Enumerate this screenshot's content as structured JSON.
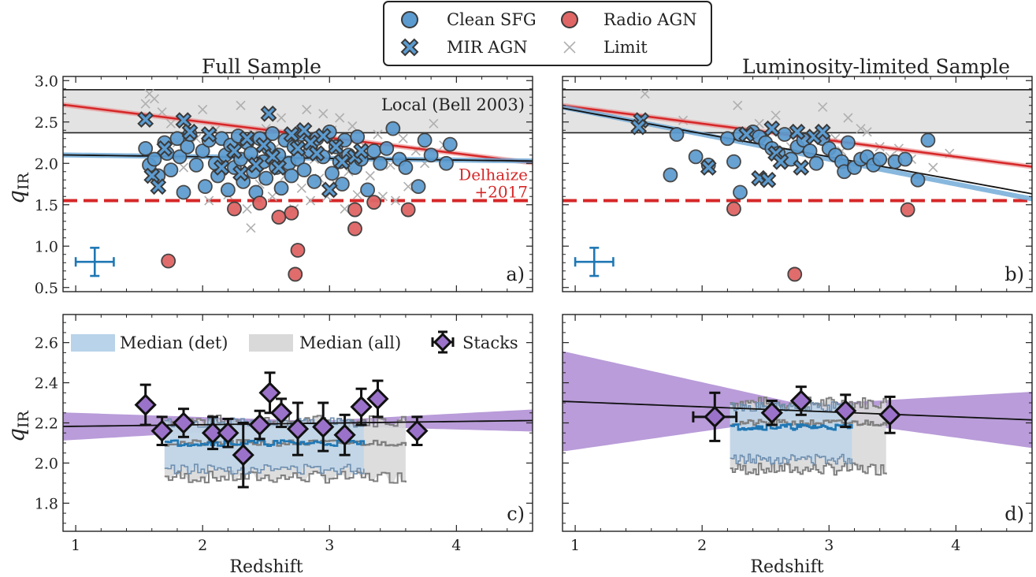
{
  "legend": {
    "items": [
      {
        "label": "Clean SFG",
        "marker": "circle",
        "color": "#5b9bd0"
      },
      {
        "label": "Radio AGN",
        "marker": "circle",
        "color": "#e06565"
      },
      {
        "label": "MIR AGN",
        "marker": "x-fat",
        "color": "#5b9bd0"
      },
      {
        "label": "Limit",
        "marker": "x-thin",
        "color": "#b0b0b0"
      }
    ]
  },
  "colors": {
    "sfg": "#5b9bd0",
    "agn": "#e06565",
    "limit": "#b0b0b0",
    "bell_band": "#e3e3e3",
    "red_line": "#d62728",
    "blue_line": "#1f77b4",
    "purple": "#9b72c9",
    "band_det": "#b8d3ea",
    "band_all": "#d9d9d9"
  },
  "chart_data": [
    {
      "id": "a",
      "type": "scatter",
      "title": "Full Sample",
      "xlabel": "",
      "ylabel": "q_IR",
      "xlim": [
        0.9,
        4.6
      ],
      "ylim": [
        0.45,
        3.05
      ],
      "yticks": [
        "0.5",
        "1.0",
        "1.5",
        "2.0",
        "2.5",
        "3.0"
      ],
      "panel_label": "a)",
      "bell_band": [
        2.37,
        2.89
      ],
      "bell_label": "Local (Bell 2003)",
      "delhaize_level": 1.55,
      "delhaize_label": [
        "Delhaize",
        "+2017"
      ],
      "fit_red": {
        "a": 2.88,
        "b": -0.19
      },
      "fit_blue": {
        "a": 2.12,
        "b": -0.02
      },
      "errorbar": {
        "x": 1.15,
        "y": 0.81,
        "xerr": 0.15,
        "yerr": 0.17
      },
      "sfg": [
        [
          1.55,
          2.18
        ],
        [
          1.58,
          1.98
        ],
        [
          1.62,
          2.05
        ],
        [
          1.65,
          1.85
        ],
        [
          1.7,
          2.25
        ],
        [
          1.72,
          2.12
        ],
        [
          1.75,
          1.92
        ],
        [
          1.8,
          2.3
        ],
        [
          1.82,
          2.08
        ],
        [
          1.85,
          1.65
        ],
        [
          1.88,
          2.2
        ],
        [
          1.9,
          2.35
        ],
        [
          1.95,
          1.98
        ],
        [
          2.0,
          2.15
        ],
        [
          2.02,
          1.72
        ],
        [
          2.05,
          2.28
        ],
        [
          2.1,
          2.0
        ],
        [
          2.12,
          1.85
        ],
        [
          2.15,
          2.3
        ],
        [
          2.18,
          2.1
        ],
        [
          2.2,
          1.68
        ],
        [
          2.22,
          2.22
        ],
        [
          2.25,
          1.95
        ],
        [
          2.28,
          2.33
        ],
        [
          2.3,
          2.05
        ],
        [
          2.32,
          1.78
        ],
        [
          2.35,
          2.25
        ],
        [
          2.38,
          2.12
        ],
        [
          2.4,
          1.9
        ],
        [
          2.42,
          1.65
        ],
        [
          2.45,
          2.3
        ],
        [
          2.48,
          2.02
        ],
        [
          2.5,
          1.82
        ],
        [
          2.52,
          2.18
        ],
        [
          2.55,
          2.36
        ],
        [
          2.58,
          1.95
        ],
        [
          2.6,
          2.1
        ],
        [
          2.62,
          1.7
        ],
        [
          2.65,
          2.28
        ],
        [
          2.68,
          2.0
        ],
        [
          2.7,
          1.85
        ],
        [
          2.72,
          2.2
        ],
        [
          2.75,
          2.05
        ],
        [
          2.78,
          2.35
        ],
        [
          2.8,
          1.92
        ],
        [
          2.85,
          2.15
        ],
        [
          2.88,
          1.78
        ],
        [
          2.9,
          2.3
        ],
        [
          2.95,
          2.08
        ],
        [
          3.0,
          2.38
        ],
        [
          3.02,
          1.88
        ],
        [
          3.05,
          2.2
        ],
        [
          3.08,
          2.02
        ],
        [
          3.1,
          1.75
        ],
        [
          3.12,
          2.28
        ],
        [
          3.15,
          2.1
        ],
        [
          3.2,
          1.95
        ],
        [
          3.22,
          2.32
        ],
        [
          3.25,
          2.05
        ],
        [
          3.3,
          1.68
        ],
        [
          3.35,
          2.15
        ],
        [
          3.4,
          2.0
        ],
        [
          3.45,
          2.18
        ],
        [
          3.5,
          2.42
        ],
        [
          3.55,
          2.05
        ],
        [
          3.6,
          1.95
        ],
        [
          3.7,
          1.72
        ],
        [
          3.75,
          2.28
        ],
        [
          3.8,
          2.1
        ],
        [
          3.92,
          2.0
        ],
        [
          3.95,
          2.23
        ]
      ],
      "mir": [
        [
          1.55,
          2.53
        ],
        [
          1.6,
          1.85
        ],
        [
          1.65,
          1.72
        ],
        [
          1.7,
          2.18
        ],
        [
          1.85,
          2.52
        ],
        [
          1.9,
          2.38
        ],
        [
          2.05,
          2.35
        ],
        [
          2.15,
          1.95
        ],
        [
          2.25,
          2.15
        ],
        [
          2.3,
          1.88
        ],
        [
          2.35,
          2.3
        ],
        [
          2.42,
          1.98
        ],
        [
          2.48,
          2.22
        ],
        [
          2.52,
          2.6
        ],
        [
          2.55,
          2.08
        ],
        [
          2.6,
          1.95
        ],
        [
          2.7,
          2.35
        ],
        [
          2.75,
          2.18
        ],
        [
          2.8,
          2.4
        ],
        [
          2.85,
          2.25
        ],
        [
          2.9,
          2.12
        ],
        [
          2.95,
          2.33
        ],
        [
          3.0,
          1.68
        ],
        [
          3.05,
          2.2
        ],
        [
          3.1,
          2.02
        ],
        [
          3.2,
          2.08
        ],
        [
          3.25,
          2.15
        ]
      ],
      "agn": [
        [
          1.73,
          0.82
        ],
        [
          2.25,
          1.45
        ],
        [
          2.45,
          1.52
        ],
        [
          2.6,
          1.35
        ],
        [
          2.7,
          1.4
        ],
        [
          2.73,
          0.66
        ],
        [
          2.75,
          0.95
        ],
        [
          3.2,
          1.44
        ],
        [
          3.2,
          1.21
        ],
        [
          3.35,
          1.53
        ],
        [
          3.62,
          1.44
        ]
      ],
      "limits": [
        [
          1.55,
          2.72
        ],
        [
          1.58,
          2.84
        ],
        [
          1.62,
          2.78
        ],
        [
          1.68,
          2.62
        ],
        [
          1.75,
          2.48
        ],
        [
          1.8,
          2.25
        ],
        [
          1.85,
          1.95
        ],
        [
          1.95,
          2.3
        ],
        [
          2.0,
          2.65
        ],
        [
          2.05,
          1.55
        ],
        [
          2.1,
          2.4
        ],
        [
          2.15,
          2.02
        ],
        [
          2.2,
          1.62
        ],
        [
          2.25,
          2.1
        ],
        [
          2.3,
          2.7
        ],
        [
          2.35,
          1.45
        ],
        [
          2.38,
          1.22
        ],
        [
          2.4,
          2.35
        ],
        [
          2.45,
          1.75
        ],
        [
          2.5,
          2.42
        ],
        [
          2.55,
          1.6
        ],
        [
          2.58,
          2.2
        ],
        [
          2.62,
          2.55
        ],
        [
          2.65,
          1.85
        ],
        [
          2.68,
          2.25
        ],
        [
          2.72,
          1.45
        ],
        [
          2.78,
          1.7
        ],
        [
          2.82,
          2.65
        ],
        [
          2.85,
          1.55
        ],
        [
          2.88,
          2.05
        ],
        [
          2.92,
          1.82
        ],
        [
          2.95,
          2.6
        ],
        [
          2.98,
          1.6
        ],
        [
          3.02,
          2.4
        ],
        [
          3.05,
          1.75
        ],
        [
          3.08,
          2.55
        ],
        [
          3.12,
          1.45
        ],
        [
          3.15,
          1.9
        ],
        [
          3.18,
          2.45
        ],
        [
          3.22,
          1.62
        ],
        [
          3.28,
          2.2
        ],
        [
          3.32,
          1.85
        ],
        [
          3.38,
          2.35
        ],
        [
          3.42,
          1.6
        ],
        [
          3.48,
          1.98
        ],
        [
          3.52,
          1.55
        ],
        [
          3.58,
          2.3
        ],
        [
          3.62,
          1.72
        ],
        [
          3.68,
          2.15
        ],
        [
          3.75,
          2.0
        ],
        [
          3.82,
          2.48
        ],
        [
          3.9,
          2.22
        ]
      ]
    },
    {
      "id": "b",
      "type": "scatter",
      "title": "Luminosity-limited Sample",
      "xlabel": "",
      "ylabel": "",
      "xlim": [
        0.9,
        4.6
      ],
      "ylim": [
        0.45,
        3.05
      ],
      "panel_label": "b)",
      "bell_band": [
        2.37,
        2.89
      ],
      "delhaize_level": 1.55,
      "fit_red": {
        "a": 2.88,
        "b": -0.2
      },
      "fit_blue": {
        "a": 2.95,
        "b": -0.3
      },
      "fit_black": {
        "a": 2.92,
        "b": -0.28
      },
      "errorbar": {
        "x": 1.15,
        "y": 0.81,
        "xerr": 0.15,
        "yerr": 0.17
      },
      "sfg": [
        [
          1.75,
          1.86
        ],
        [
          1.8,
          2.35
        ],
        [
          1.95,
          2.08
        ],
        [
          2.05,
          1.98
        ],
        [
          2.2,
          2.3
        ],
        [
          2.25,
          2.02
        ],
        [
          2.3,
          2.35
        ],
        [
          2.4,
          2.38
        ],
        [
          2.45,
          2.32
        ],
        [
          2.5,
          2.25
        ],
        [
          2.55,
          2.18
        ],
        [
          2.6,
          2.12
        ],
        [
          2.65,
          2.35
        ],
        [
          2.7,
          2.05
        ],
        [
          2.75,
          2.2
        ],
        [
          2.8,
          2.28
        ],
        [
          2.85,
          2.15
        ],
        [
          2.9,
          2.0
        ],
        [
          2.95,
          2.3
        ],
        [
          3.0,
          2.18
        ],
        [
          3.05,
          2.1
        ],
        [
          3.1,
          2.02
        ],
        [
          3.12,
          1.9
        ],
        [
          3.15,
          2.25
        ],
        [
          3.2,
          1.95
        ],
        [
          3.25,
          2.05
        ],
        [
          3.3,
          2.08
        ],
        [
          3.35,
          1.98
        ],
        [
          3.4,
          2.05
        ],
        [
          3.52,
          2.02
        ],
        [
          3.6,
          2.05
        ],
        [
          3.7,
          1.8
        ],
        [
          3.78,
          2.28
        ],
        [
          2.3,
          1.65
        ]
      ],
      "mir": [
        [
          1.52,
          2.52
        ],
        [
          1.5,
          2.44
        ],
        [
          2.05,
          1.95
        ],
        [
          2.35,
          2.35
        ],
        [
          2.45,
          1.82
        ],
        [
          2.52,
          1.8
        ],
        [
          2.55,
          2.42
        ],
        [
          2.58,
          2.12
        ],
        [
          2.62,
          2.02
        ],
        [
          2.75,
          2.38
        ],
        [
          2.78,
          1.95
        ],
        [
          2.88,
          2.32
        ],
        [
          2.95,
          2.38
        ]
      ],
      "agn": [
        [
          2.25,
          1.45
        ],
        [
          2.73,
          0.66
        ],
        [
          3.62,
          1.44
        ]
      ],
      "limits": [
        [
          1.55,
          2.84
        ],
        [
          1.85,
          2.52
        ],
        [
          2.28,
          2.7
        ],
        [
          2.45,
          2.48
        ],
        [
          2.58,
          2.58
        ],
        [
          2.7,
          2.2
        ],
        [
          2.95,
          2.68
        ],
        [
          3.05,
          2.3
        ],
        [
          3.1,
          2.15
        ],
        [
          3.15,
          2.55
        ],
        [
          3.25,
          2.42
        ],
        [
          3.3,
          2.38
        ],
        [
          3.4,
          2.2
        ],
        [
          3.48,
          2.08
        ],
        [
          3.55,
          2.18
        ],
        [
          3.65,
          2.05
        ],
        [
          3.82,
          1.95
        ],
        [
          3.95,
          2.12
        ]
      ]
    },
    {
      "id": "c",
      "type": "area",
      "xlabel": "Redshift",
      "ylabel": "q_IR",
      "xlim": [
        0.9,
        4.6
      ],
      "ylim": [
        1.66,
        2.74
      ],
      "xticks": [
        "1",
        "2",
        "3",
        "4"
      ],
      "yticks": [
        "1.8",
        "2.0",
        "2.2",
        "2.4",
        "2.6"
      ],
      "panel_label": "c)",
      "legend": [
        "Median (det)",
        "Median (all)",
        "Stacks"
      ],
      "fit_line": {
        "a": 2.175,
        "b": 0.008
      },
      "fit_band_halfwidth_end": [
        0.07,
        0.055
      ],
      "fit_band_center_x": 2.9,
      "band_all": {
        "x": [
          1.7,
          3.6
        ],
        "low": 1.93,
        "high": 2.21,
        "median": 2.1
      },
      "band_det": {
        "x": [
          1.7,
          3.27
        ],
        "low": 1.97,
        "high": 2.2,
        "median": 2.1
      },
      "stacks": [
        [
          1.55,
          2.29,
          0.1
        ],
        [
          1.68,
          2.16,
          0.07
        ],
        [
          1.85,
          2.2,
          0.07
        ],
        [
          2.08,
          2.15,
          0.08
        ],
        [
          2.2,
          2.15,
          0.07
        ],
        [
          2.32,
          2.04,
          0.16
        ],
        [
          2.45,
          2.19,
          0.07
        ],
        [
          2.53,
          2.35,
          0.1
        ],
        [
          2.62,
          2.25,
          0.07
        ],
        [
          2.75,
          2.17,
          0.13
        ],
        [
          2.95,
          2.18,
          0.12
        ],
        [
          3.12,
          2.14,
          0.1
        ],
        [
          3.25,
          2.28,
          0.09
        ],
        [
          3.38,
          2.32,
          0.09
        ],
        [
          3.69,
          2.16,
          0.07
        ]
      ],
      "stack_xerr": [
        0,
        0,
        0,
        0,
        0,
        0,
        0,
        0,
        0,
        0,
        0,
        0,
        0,
        0,
        0
      ]
    },
    {
      "id": "d",
      "type": "area",
      "xlabel": "Redshift",
      "ylabel": "",
      "xlim": [
        0.9,
        4.6
      ],
      "ylim": [
        1.66,
        2.74
      ],
      "xticks": [
        "1",
        "2",
        "3",
        "4"
      ],
      "panel_label": "d)",
      "fit_line": {
        "a": 2.33,
        "b": -0.025
      },
      "fit_band": {
        "center_x": 2.8,
        "half_left": 0.25,
        "half_right": 0.14,
        "half_center": 0.03
      },
      "band_all": {
        "x": [
          2.22,
          3.45
        ],
        "low": 1.97,
        "high": 2.3,
        "median": 2.2
      },
      "band_det": {
        "x": [
          2.22,
          3.18
        ],
        "low": 2.02,
        "high": 2.28,
        "median": 2.18
      },
      "stacks": [
        [
          2.1,
          2.23,
          0.12
        ],
        [
          2.55,
          2.25,
          0.06
        ],
        [
          2.78,
          2.31,
          0.07
        ],
        [
          3.13,
          2.26,
          0.08
        ],
        [
          3.48,
          2.24,
          0.09
        ]
      ],
      "stack_xerr": [
        0.17,
        0,
        0,
        0,
        0
      ]
    }
  ]
}
